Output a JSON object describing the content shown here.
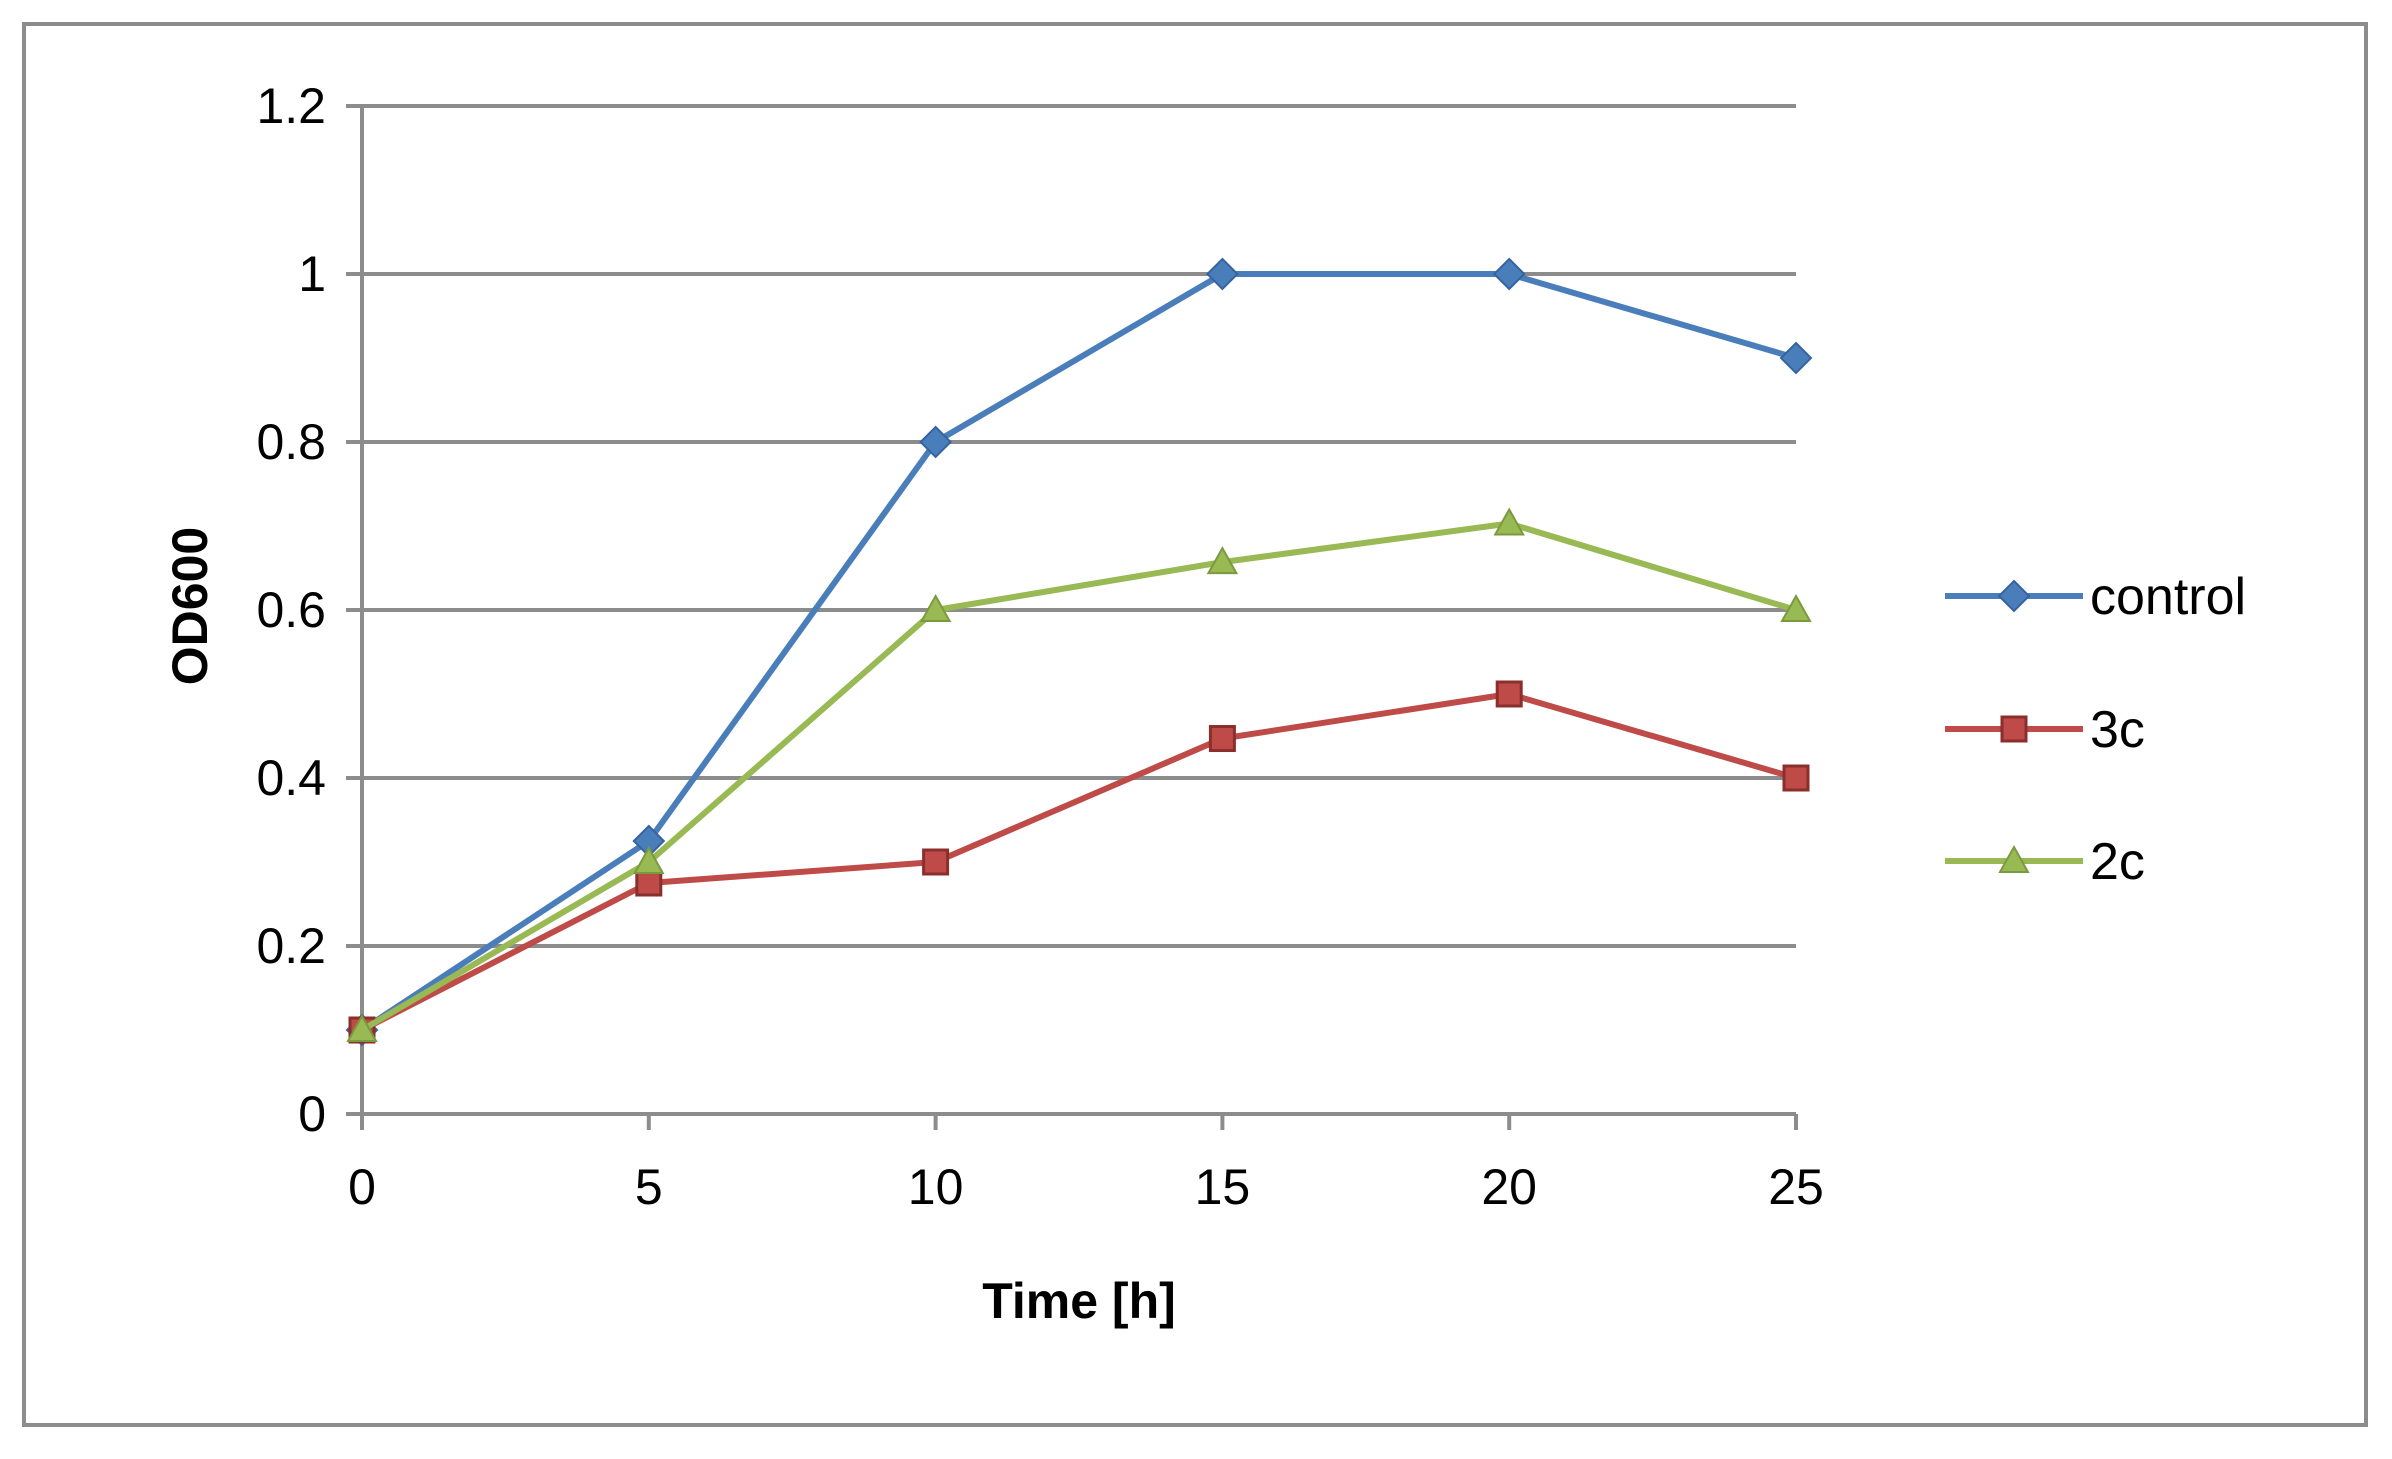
{
  "chart_data": {
    "type": "line",
    "title": "",
    "xlabel": "Time [h]",
    "ylabel": "OD600",
    "x": [
      0,
      5,
      10,
      15,
      20,
      25
    ],
    "xlim": [
      0,
      25
    ],
    "ylim": [
      0,
      1.2
    ],
    "xticks": [
      0,
      5,
      10,
      15,
      20,
      25
    ],
    "xtick_labels": [
      "0",
      "5",
      "10",
      "15",
      "20",
      "25"
    ],
    "yticks": [
      0,
      0.2,
      0.4,
      0.6,
      0.8,
      1.0,
      1.2
    ],
    "ytick_labels": [
      "0",
      "0.2",
      "0.4",
      "0.6",
      "0.8",
      "1",
      "1.2"
    ],
    "grid": true,
    "legend_position": "right",
    "series": [
      {
        "name": "control",
        "color": "#4a7ebb",
        "marker": "diamond",
        "values": [
          0.1,
          0.325,
          0.8,
          1.0,
          1.0,
          0.9
        ]
      },
      {
        "name": "3c",
        "color": "#be4b48",
        "marker": "square",
        "values": [
          0.1,
          0.275,
          0.3,
          0.447,
          0.5,
          0.4
        ]
      },
      {
        "name": "2c",
        "color": "#98b954",
        "marker": "triangle",
        "values": [
          0.1,
          0.3,
          0.6,
          0.657,
          0.703,
          0.6
        ]
      }
    ]
  }
}
